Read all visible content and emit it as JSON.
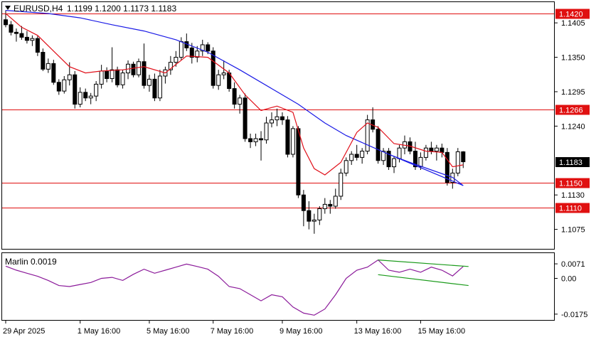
{
  "header": {
    "symbol_text": "EURUSD,H4",
    "ohlc_text": "1.1199 1.1200 1.1173 1.1183"
  },
  "indicator": {
    "label": "Marlin 0.0019"
  },
  "colors": {
    "bull_body": "#ffffff",
    "bear_body": "#000000",
    "wick": "#000000",
    "fast_ma": "#e0101a",
    "slow_ma": "#1a1ae6",
    "level_line": "#e01010",
    "level_badge": "#e01010",
    "price_badge": "#000000",
    "osc": "#8b1a9a",
    "trend": "#1a9a1a",
    "axis": "#000000"
  },
  "chart_data": [
    {
      "type": "candlestick",
      "title": "EURUSD,H4",
      "y_ticks": [
        "1.1405",
        "1.1350",
        "1.1295",
        "1.1240",
        "1.1130",
        "1.1075"
      ],
      "ylim": [
        1.1045,
        1.1437
      ],
      "current_price": 1.1183,
      "x_ticks": [
        {
          "label": "29 Apr 2025",
          "i": 0
        },
        {
          "label": "1 May 16:00",
          "i": 14
        },
        {
          "label": "5 May 16:00",
          "i": 27
        },
        {
          "label": "7 May 16:00",
          "i": 39
        },
        {
          "label": "9 May 16:00",
          "i": 52
        },
        {
          "label": "13 May 16:00",
          "i": 66
        },
        {
          "label": "15 May 16:00",
          "i": 78
        }
      ],
      "levels": [
        {
          "price": 1.142,
          "label": "1.1420"
        },
        {
          "price": 1.1266,
          "label": "1.1266"
        },
        {
          "price": 1.115,
          "label": "1.1150"
        },
        {
          "price": 1.111,
          "label": "1.1110"
        }
      ],
      "candles": [
        [
          1.141,
          1.1425,
          1.1398,
          1.1402
        ],
        [
          1.1402,
          1.1408,
          1.1385,
          1.139
        ],
        [
          1.139,
          1.1396,
          1.1375,
          1.1388
        ],
        [
          1.1388,
          1.14,
          1.1378,
          1.1382
        ],
        [
          1.1382,
          1.1392,
          1.1372,
          1.1377
        ],
        [
          1.1377,
          1.1385,
          1.1368,
          1.138
        ],
        [
          1.138,
          1.1384,
          1.1352,
          1.1358
        ],
        [
          1.1358,
          1.1364,
          1.1328,
          1.1331
        ],
        [
          1.1331,
          1.1348,
          1.1325,
          1.134
        ],
        [
          1.134,
          1.1346,
          1.1306,
          1.131
        ],
        [
          1.131,
          1.1315,
          1.129,
          1.1296
        ],
        [
          1.1296,
          1.132,
          1.1292,
          1.1314
        ],
        [
          1.1314,
          1.1342,
          1.1305,
          1.1322
        ],
        [
          1.1322,
          1.1328,
          1.1268,
          1.1275
        ],
        [
          1.1275,
          1.1302,
          1.127,
          1.1294
        ],
        [
          1.1294,
          1.13,
          1.128,
          1.1285
        ],
        [
          1.1285,
          1.1293,
          1.1275,
          1.1288
        ],
        [
          1.1288,
          1.1312,
          1.128,
          1.1307
        ],
        [
          1.1307,
          1.1338,
          1.13,
          1.1328
        ],
        [
          1.1328,
          1.1334,
          1.131,
          1.1316
        ],
        [
          1.1316,
          1.1366,
          1.131,
          1.133
        ],
        [
          1.133,
          1.1335,
          1.1302,
          1.1306
        ],
        [
          1.1306,
          1.133,
          1.13,
          1.1325
        ],
        [
          1.1325,
          1.1345,
          1.1315,
          1.1339
        ],
        [
          1.1339,
          1.1343,
          1.1318,
          1.1322
        ],
        [
          1.1322,
          1.1348,
          1.1318,
          1.1343
        ],
        [
          1.1343,
          1.1372,
          1.13,
          1.1305
        ],
        [
          1.1305,
          1.1322,
          1.1295,
          1.1315
        ],
        [
          1.1315,
          1.1324,
          1.128,
          1.1285
        ],
        [
          1.1285,
          1.133,
          1.128,
          1.132
        ],
        [
          1.132,
          1.1335,
          1.1308,
          1.133
        ],
        [
          1.133,
          1.1352,
          1.1322,
          1.1342
        ],
        [
          1.1342,
          1.136,
          1.1335,
          1.135
        ],
        [
          1.135,
          1.1382,
          1.1345,
          1.1375
        ],
        [
          1.1375,
          1.1388,
          1.136,
          1.1365
        ],
        [
          1.1365,
          1.1373,
          1.134,
          1.135
        ],
        [
          1.135,
          1.1368,
          1.1342,
          1.136
        ],
        [
          1.136,
          1.1378,
          1.1352,
          1.137
        ],
        [
          1.137,
          1.1374,
          1.1355,
          1.136
        ],
        [
          1.136,
          1.1366,
          1.13,
          1.1305
        ],
        [
          1.1305,
          1.133,
          1.1298,
          1.1322
        ],
        [
          1.1322,
          1.1345,
          1.1315,
          1.1325
        ],
        [
          1.1325,
          1.133,
          1.1295,
          1.13
        ],
        [
          1.13,
          1.131,
          1.1268,
          1.1275
        ],
        [
          1.1275,
          1.129,
          1.126,
          1.1285
        ],
        [
          1.1285,
          1.1292,
          1.1215,
          1.122
        ],
        [
          1.122,
          1.1228,
          1.1205,
          1.1215
        ],
        [
          1.1215,
          1.1228,
          1.1208,
          1.122
        ],
        [
          1.122,
          1.1232,
          1.1185,
          1.1218
        ],
        [
          1.1218,
          1.1255,
          1.1212,
          1.1245
        ],
        [
          1.1245,
          1.1262,
          1.1238,
          1.125
        ],
        [
          1.125,
          1.1268,
          1.124,
          1.1255
        ],
        [
          1.1255,
          1.1262,
          1.1242,
          1.125
        ],
        [
          1.125,
          1.1256,
          1.119,
          1.1195
        ],
        [
          1.1195,
          1.124,
          1.119,
          1.1236
        ],
        [
          1.1236,
          1.124,
          1.1125,
          1.113
        ],
        [
          1.113,
          1.1138,
          1.108,
          1.1105
        ],
        [
          1.1105,
          1.112,
          1.1075,
          1.1088
        ],
        [
          1.1088,
          1.11,
          1.1068,
          1.109
        ],
        [
          1.109,
          1.1112,
          1.1082,
          1.1108
        ],
        [
          1.1108,
          1.1125,
          1.11,
          1.1115
        ],
        [
          1.1115,
          1.1122,
          1.11,
          1.1112
        ],
        [
          1.1112,
          1.114,
          1.1108,
          1.1128
        ],
        [
          1.1128,
          1.1172,
          1.1122,
          1.1165
        ],
        [
          1.1165,
          1.119,
          1.116,
          1.1185
        ],
        [
          1.1185,
          1.12,
          1.1178,
          1.1195
        ],
        [
          1.1195,
          1.121,
          1.1185,
          1.119
        ],
        [
          1.119,
          1.1205,
          1.118,
          1.12
        ],
        [
          1.12,
          1.1258,
          1.1195,
          1.125
        ],
        [
          1.125,
          1.127,
          1.123,
          1.1235
        ],
        [
          1.1235,
          1.124,
          1.118,
          1.1185
        ],
        [
          1.1185,
          1.1205,
          1.1178,
          1.12
        ],
        [
          1.12,
          1.1205,
          1.117,
          1.1175
        ],
        [
          1.1175,
          1.1192,
          1.1165,
          1.1188
        ],
        [
          1.1188,
          1.121,
          1.1182,
          1.1205
        ],
        [
          1.1205,
          1.1225,
          1.1195,
          1.1215
        ],
        [
          1.1215,
          1.1222,
          1.1195,
          1.12
        ],
        [
          1.12,
          1.1215,
          1.117,
          1.1175
        ],
        [
          1.1175,
          1.1198,
          1.117,
          1.119
        ],
        [
          1.119,
          1.121,
          1.1185,
          1.1205
        ],
        [
          1.1205,
          1.1215,
          1.1195,
          1.12
        ],
        [
          1.12,
          1.121,
          1.1185,
          1.1205
        ],
        [
          1.1205,
          1.1212,
          1.119,
          1.1198
        ],
        [
          1.1198,
          1.1205,
          1.1145,
          1.115
        ],
        [
          1.115,
          1.1172,
          1.114,
          1.1165
        ],
        [
          1.1165,
          1.1205,
          1.116,
          1.1199
        ],
        [
          1.1199,
          1.12,
          1.1173,
          1.1183
        ]
      ],
      "fast_ma": [
        [
          0,
          1.142
        ],
        [
          3,
          1.1398
        ],
        [
          6,
          1.1385
        ],
        [
          9,
          1.136
        ],
        [
          12,
          1.1335
        ],
        [
          15,
          1.1325
        ],
        [
          18,
          1.1328
        ],
        [
          22,
          1.133
        ],
        [
          26,
          1.1335
        ],
        [
          30,
          1.1325
        ],
        [
          34,
          1.1352
        ],
        [
          38,
          1.135
        ],
        [
          42,
          1.1325
        ],
        [
          45,
          1.129
        ],
        [
          48,
          1.1265
        ],
        [
          51,
          1.1272
        ],
        [
          54,
          1.1262
        ],
        [
          56,
          1.1205
        ],
        [
          58,
          1.1172
        ],
        [
          60,
          1.1162
        ],
        [
          63,
          1.1182
        ],
        [
          66,
          1.123
        ],
        [
          68,
          1.1245
        ],
        [
          70,
          1.1238
        ],
        [
          73,
          1.1212
        ],
        [
          76,
          1.1208
        ],
        [
          79,
          1.12
        ],
        [
          82,
          1.1198
        ],
        [
          84,
          1.1175
        ],
        [
          86,
          1.1178
        ]
      ],
      "slow_ma": [
        [
          0,
          1.1425
        ],
        [
          8,
          1.142
        ],
        [
          14,
          1.1413
        ],
        [
          20,
          1.1402
        ],
        [
          26,
          1.1392
        ],
        [
          32,
          1.1378
        ],
        [
          38,
          1.1358
        ],
        [
          44,
          1.133
        ],
        [
          50,
          1.13
        ],
        [
          55,
          1.1275
        ],
        [
          60,
          1.1245
        ],
        [
          64,
          1.1225
        ],
        [
          68,
          1.121
        ],
        [
          72,
          1.1195
        ],
        [
          76,
          1.1182
        ],
        [
          80,
          1.117
        ],
        [
          84,
          1.1158
        ],
        [
          86,
          1.1145
        ]
      ],
      "green_trendline": {
        "i": [
          72,
          86
        ],
        "values": [
          1.1195,
          1.1145
        ]
      }
    },
    {
      "type": "line",
      "title": "Marlin 0.0019",
      "y_ticks": [
        "0.0071",
        "0.00",
        "-0.0175"
      ],
      "ylim": [
        -0.02,
        0.012
      ],
      "series": [
        {
          "points": [
            [
              0,
              0.006
            ],
            [
              2,
              0.004
            ],
            [
              4,
              0.0025
            ],
            [
              6,
              0.001
            ],
            [
              8,
              -0.001
            ],
            [
              10,
              -0.0035
            ],
            [
              12,
              -0.004
            ],
            [
              14,
              -0.003
            ],
            [
              16,
              -0.002
            ],
            [
              18,
              0.0
            ],
            [
              20,
              0.0005
            ],
            [
              22,
              -0.001
            ],
            [
              24,
              0.002
            ],
            [
              26,
              0.0045
            ],
            [
              28,
              0.0025
            ],
            [
              30,
              0.004
            ],
            [
              32,
              0.0055
            ],
            [
              34,
              0.007
            ],
            [
              36,
              0.0058
            ],
            [
              38,
              0.0045
            ],
            [
              40,
              0.001
            ],
            [
              42,
              -0.004
            ],
            [
              44,
              -0.005
            ],
            [
              46,
              -0.008
            ],
            [
              48,
              -0.011
            ],
            [
              50,
              -0.008
            ],
            [
              52,
              -0.009
            ],
            [
              54,
              -0.014
            ],
            [
              56,
              -0.017
            ],
            [
              58,
              -0.018
            ],
            [
              60,
              -0.015
            ],
            [
              62,
              -0.008
            ],
            [
              64,
              0.0
            ],
            [
              66,
              0.004
            ],
            [
              68,
              0.0055
            ],
            [
              70,
              0.009
            ],
            [
              72,
              0.004
            ],
            [
              74,
              0.003
            ],
            [
              76,
              0.0045
            ],
            [
              78,
              0.003
            ],
            [
              80,
              0.0055
            ],
            [
              82,
              0.004
            ],
            [
              84,
              0.0012
            ],
            [
              86,
              0.0058
            ]
          ]
        }
      ],
      "trendlines": [
        {
          "i": [
            70,
            87
          ],
          "values": [
            0.009,
            0.0058
          ]
        },
        {
          "i": [
            70,
            87
          ],
          "values": [
            0.0018,
            -0.0035
          ]
        }
      ]
    }
  ]
}
